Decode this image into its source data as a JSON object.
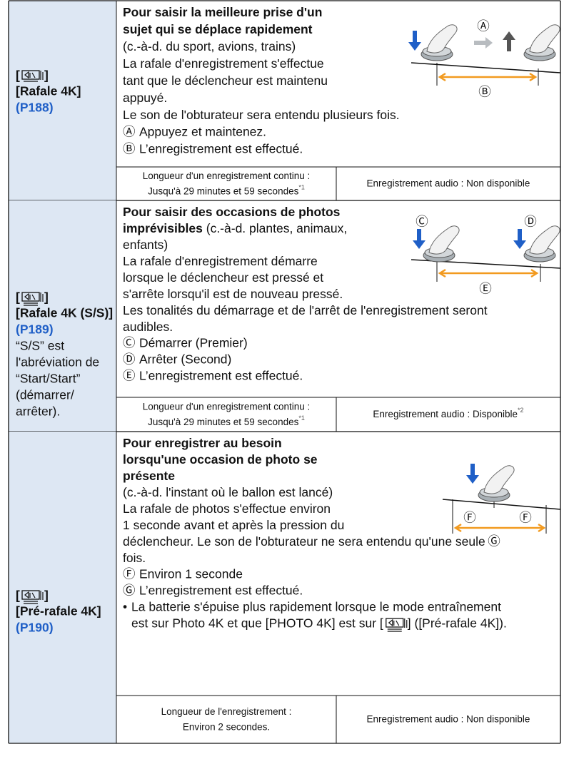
{
  "rows": [
    {
      "mode": {
        "icon_open": "[",
        "icon_close": "]",
        "name": "[Rafale 4K]",
        "page": "(P188)",
        "extra_lines": []
      },
      "lines": [
        [
          {
            "t": "Pour saisir la meilleure prise d'un",
            "b": true
          }
        ],
        [
          {
            "t": "sujet qui se déplace rapidement",
            "b": true
          }
        ],
        [
          {
            "t": "(c.-à-d. du sport, avions, trains)"
          }
        ],
        [
          {
            "t": "La rafale d'enregistrement s'effectue"
          }
        ],
        [
          {
            "t": "tant que le déclencheur est maintenu"
          }
        ],
        [
          {
            "t": "appuyé."
          }
        ],
        [
          {
            "t": "Le son de l'obturateur sera entendu plusieurs fois."
          }
        ]
      ],
      "legend": [
        {
          "mark": "Ⓐ",
          "text": "Appuyez et maintenez."
        },
        {
          "mark": "Ⓑ",
          "text": "L’enregistrement est effectué."
        }
      ],
      "diagram_labels": [
        "Ⓐ",
        "Ⓑ"
      ],
      "footer": {
        "duration_label": "Longueur d'un enregistrement continu :",
        "duration_value": "Jusqu'à 29 minutes et 59 secondes",
        "duration_note": "*1",
        "audio": "Enregistrement audio : Non disponible"
      }
    },
    {
      "mode": {
        "icon_open": "[",
        "icon_close": "]",
        "name": "[Rafale 4K (S/S)]",
        "page": "(P189)",
        "extra_lines": [
          "“S/S” est",
          "l'abréviation de",
          "“Start/Start”",
          "(démarrer/",
          "arrêter)."
        ]
      },
      "lines": [
        [
          {
            "t": "Pour saisir des occasions de photos",
            "b": true
          }
        ],
        [
          {
            "t": "imprévisibles",
            "b": true
          },
          {
            "t": " (c.-à-d. plantes, animaux,"
          }
        ],
        [
          {
            "t": "enfants)"
          }
        ],
        [
          {
            "t": "La rafale d'enregistrement démarre"
          }
        ],
        [
          {
            "t": "lorsque le déclencheur est pressé et"
          }
        ],
        [
          {
            "t": "s'arrête lorsqu'il est de nouveau pressé."
          }
        ],
        [
          {
            "t": "Les tonalités du démarrage et de l'arrêt de l'enregistrement seront"
          }
        ],
        [
          {
            "t": "audibles."
          }
        ]
      ],
      "legend": [
        {
          "mark": "Ⓒ",
          "text": "Démarrer (Premier)"
        },
        {
          "mark": "Ⓓ",
          "text": "Arrêter (Second)"
        },
        {
          "mark": "Ⓔ",
          "text": "L’enregistrement est effectué."
        }
      ],
      "diagram_labels": [
        "Ⓒ",
        "Ⓓ",
        "Ⓔ"
      ],
      "footer": {
        "duration_label": "Longueur d'un enregistrement continu :",
        "duration_value": "Jusqu'à 29 minutes et 59 secondes",
        "duration_note": "*1",
        "audio": "Enregistrement audio : Disponible",
        "audio_note": "*2"
      }
    },
    {
      "mode": {
        "icon_open": "[",
        "icon_close": "]",
        "name": "[Pré-rafale 4K]",
        "page": "(P190)",
        "extra_lines": []
      },
      "lines": [
        [
          {
            "t": "Pour enregistrer au besoin",
            "b": true
          }
        ],
        [
          {
            "t": "lorsqu'une occasion de photo se",
            "b": true
          }
        ],
        [
          {
            "t": "présente",
            "b": true
          }
        ],
        [
          {
            "t": "(c.-à-d. l'instant où le ballon est lancé)"
          }
        ],
        [
          {
            "t": "La rafale de photos s'effectue environ"
          }
        ],
        [
          {
            "t": "1 seconde avant et après la pression du"
          }
        ],
        [
          {
            "t": "déclencheur. Le son de l'obturateur ne sera entendu qu'une seule"
          }
        ],
        [
          {
            "t": "fois."
          }
        ]
      ],
      "legend": [
        {
          "mark": "Ⓕ",
          "text": "Environ 1 seconde"
        },
        {
          "mark": "Ⓖ",
          "text": "L’enregistrement est effectué."
        }
      ],
      "diagram_labels": [
        "Ⓕ",
        "Ⓕ",
        "Ⓖ"
      ],
      "note": {
        "bullet": "•",
        "line1": "La batterie s'épuise plus rapidement lorsque le mode entraînement",
        "line2_before": "est sur Photo 4K et que [PHOTO 4K] est sur [",
        "line2_after": "] ([Pré-rafale 4K])."
      },
      "footer": {
        "duration_label": "Longueur de l'enregistrement :",
        "duration_value": "Environ 2 secondes.",
        "audio": "Enregistrement audio : Non disponible"
      }
    }
  ]
}
